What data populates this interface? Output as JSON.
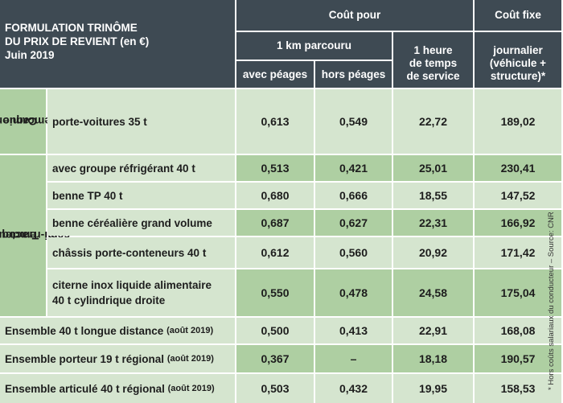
{
  "header": {
    "title": [
      "FORMULATION TRINÔME",
      "DU PRIX DE REVIENT (en €)",
      "Juin 2019"
    ],
    "cout_pour": "Coût pour",
    "cout_fixe": "Coût fixe",
    "km": "1 km parcouru",
    "avec_peages": "avec péages",
    "hors_peages": "hors péages",
    "heure": [
      "1 heure",
      "de temps",
      "de service"
    ],
    "journalier": [
      "journalier",
      "(véhicule +",
      "structure)*"
    ]
  },
  "groups": {
    "camion": [
      "Camion",
      "remorque"
    ],
    "tracteur": [
      "Tracteur",
      "semi-remorque"
    ]
  },
  "rows": [
    {
      "label": [
        "porte-voitures 35 t"
      ],
      "avec": "0,613",
      "hors": "0,549",
      "heure": "22,72",
      "fixe": "189,02"
    },
    {
      "label": [
        "avec groupe réfrigérant 40 t"
      ],
      "avec": "0,513",
      "hors": "0,421",
      "heure": "25,01",
      "fixe": "230,41"
    },
    {
      "label": [
        "benne TP 40 t"
      ],
      "avec": "0,680",
      "hors": "0,666",
      "heure": "18,55",
      "fixe": "147,52"
    },
    {
      "label": [
        "benne céréalière grand volume"
      ],
      "avec": "0,687",
      "hors": "0,627",
      "heure": "22,31",
      "fixe": "166,92"
    },
    {
      "label": [
        "châssis porte-conteneurs 40 t"
      ],
      "avec": "0,612",
      "hors": "0,560",
      "heure": "20,92",
      "fixe": "171,42"
    },
    {
      "label": [
        "citerne inox liquide alimentaire",
        "40 t cylindrique droite"
      ],
      "avec": "0,550",
      "hors": "0,478",
      "heure": "24,58",
      "fixe": "175,04"
    },
    {
      "label": [
        "Ensemble 40 t longue distance"
      ],
      "suffix": "(août 2019)",
      "avec": "0,500",
      "hors": "0,413",
      "heure": "22,91",
      "fixe": "168,08"
    },
    {
      "label": [
        "Ensemble porteur 19 t régional"
      ],
      "suffix": "(août 2019)",
      "avec": "0,367",
      "hors": "–",
      "heure": "18,18",
      "fixe": "190,57"
    },
    {
      "label": [
        "Ensemble articulé 40 t régional"
      ],
      "suffix": "(août 2019)",
      "avec": "0,503",
      "hors": "0,432",
      "heure": "19,95",
      "fixe": "158,53"
    }
  ],
  "footnote": "* Hors coûts salariaux du conducteur – Source: CNR",
  "colors": {
    "header": "#3e4a53",
    "row_light": "#d5e5cf",
    "row_dark": "#aecfa2"
  }
}
